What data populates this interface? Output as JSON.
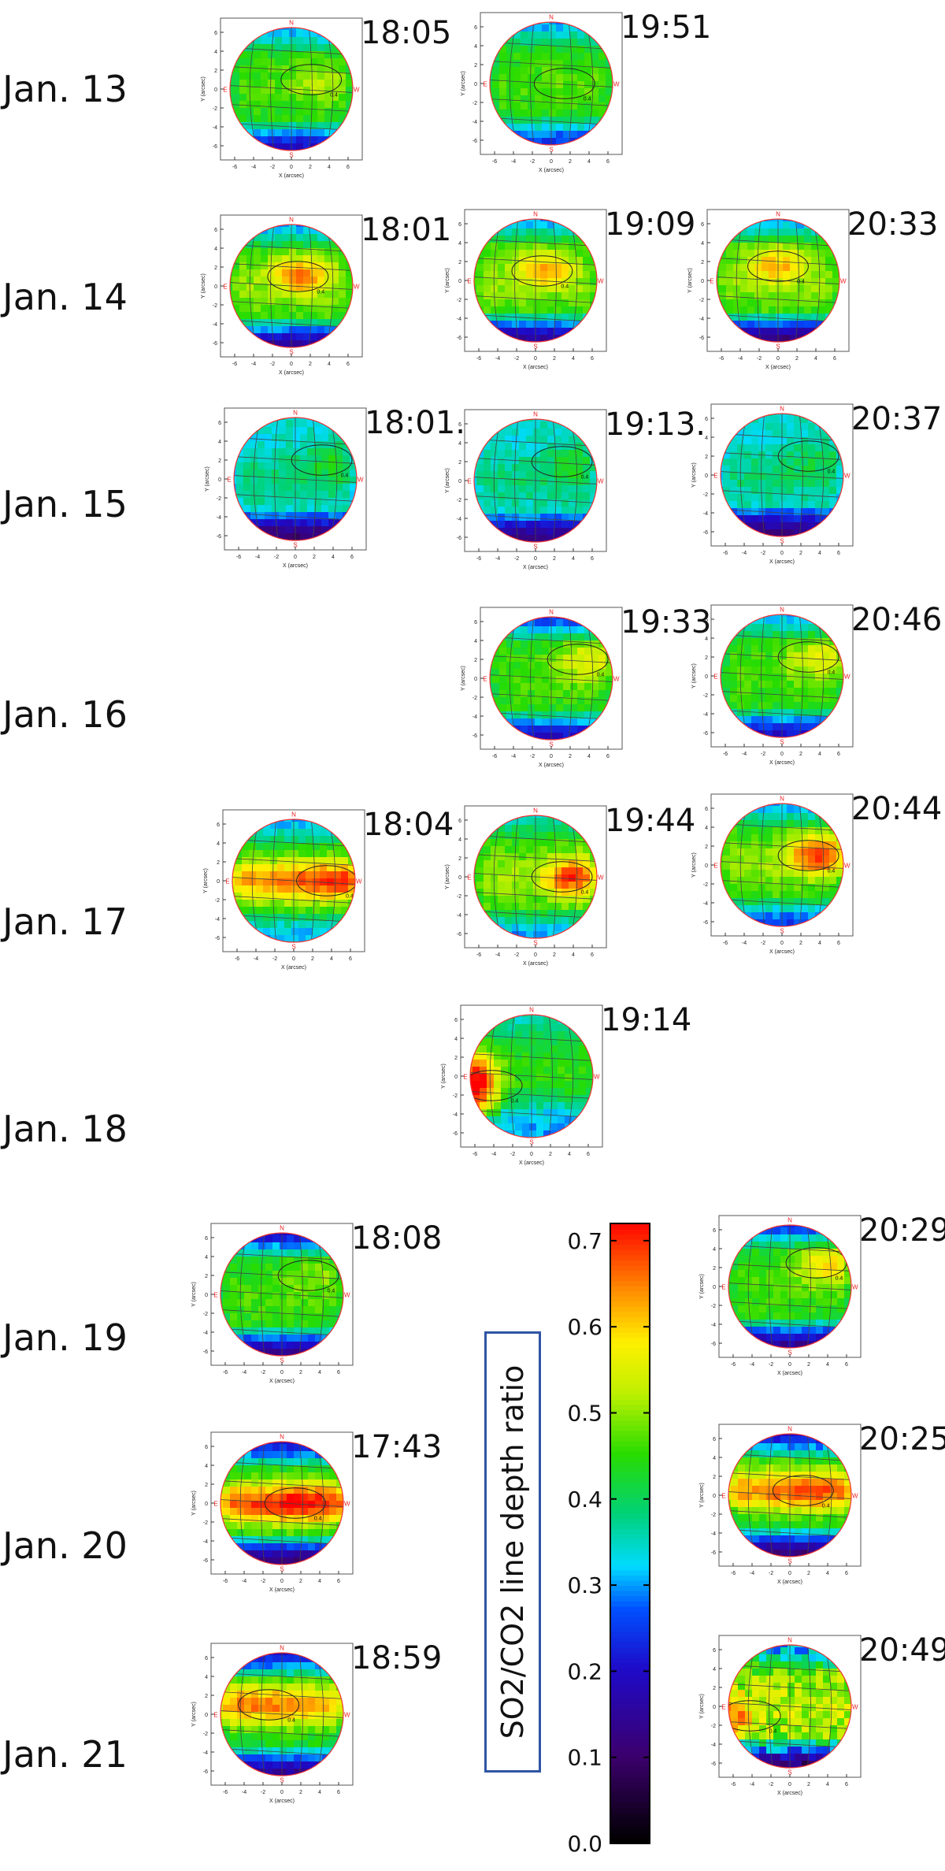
{
  "chart_data": {
    "type": "heatmap",
    "xlabel": "X (arcsec)",
    "ylabel": "Y (arcsec)",
    "x_ticks": [
      -6,
      -4,
      -2,
      0,
      2,
      4,
      6
    ],
    "y_ticks": [
      6,
      4,
      2,
      0,
      -2,
      -4,
      -6
    ],
    "disk_labels": {
      "north": "N",
      "south": "S",
      "east": "E",
      "west": "W"
    },
    "contour_labels": [
      "0.4",
      "0.5"
    ],
    "colorbar": {
      "label": "SO2/CO2 line depth ratio",
      "range": [
        0.0,
        0.72
      ],
      "ticks": [
        "0.7",
        "0.6",
        "0.5",
        "0.4",
        "0.3",
        "0.2",
        "0.1",
        "0.0"
      ]
    },
    "days": [
      {
        "date": "Jan. 13",
        "maps": [
          {
            "time": "18:05",
            "peak": 0.5,
            "peak_x": 3,
            "peak_y": 1,
            "south": 0.2,
            "north": 0.3,
            "style": "mid"
          },
          {
            "time": "19:51",
            "peak": 0.45,
            "peak_x": 2,
            "peak_y": 0,
            "south": 0.25,
            "north": 0.3,
            "style": "mid"
          }
        ]
      },
      {
        "date": "Jan. 14",
        "maps": [
          {
            "time": "18:01",
            "peak": 0.65,
            "peak_x": 1,
            "peak_y": 1,
            "south": 0.15,
            "north": 0.3,
            "style": "blob"
          },
          {
            "time": "19:09",
            "peak": 0.62,
            "peak_x": 1,
            "peak_y": 1,
            "south": 0.15,
            "north": 0.3,
            "style": "blob"
          },
          {
            "time": "20:33",
            "peak": 0.62,
            "peak_x": 0,
            "peak_y": 1.5,
            "south": 0.12,
            "north": 0.3,
            "style": "blob"
          }
        ]
      },
      {
        "date": "Jan. 15",
        "maps": [
          {
            "time": "18:01.",
            "peak": 0.42,
            "peak_x": 4,
            "peak_y": 2,
            "south": 0.1,
            "north": 0.35,
            "style": "low"
          },
          {
            "time": "19:13.",
            "peak": 0.42,
            "peak_x": 4,
            "peak_y": 2,
            "south": 0.12,
            "north": 0.35,
            "style": "low"
          },
          {
            "time": "20:37",
            "peak": 0.4,
            "peak_x": 4,
            "peak_y": 2,
            "south": 0.12,
            "north": 0.35,
            "style": "low"
          }
        ]
      },
      {
        "date": "Jan. 16",
        "maps": [
          {
            "time": "19:33",
            "peak": 0.55,
            "peak_x": 4,
            "peak_y": 2,
            "south": 0.2,
            "north": 0.25,
            "style": "mid"
          },
          {
            "time": "20:46",
            "peak": 0.55,
            "peak_x": 4,
            "peak_y": 2,
            "south": 0.2,
            "north": 0.3,
            "style": "mid"
          }
        ]
      },
      {
        "date": "Jan. 17",
        "maps": [
          {
            "time": "18:04",
            "peak": 0.7,
            "peak_x": 5,
            "peak_y": 0,
            "south": 0.3,
            "north": 0.3,
            "style": "band"
          },
          {
            "time": "19:44",
            "peak": 0.7,
            "peak_x": 4,
            "peak_y": 0,
            "south": 0.3,
            "north": 0.35,
            "style": "blob"
          },
          {
            "time": "20:44",
            "peak": 0.7,
            "peak_x": 4,
            "peak_y": 1,
            "south": 0.25,
            "north": 0.3,
            "style": "blob"
          }
        ]
      },
      {
        "date": "Jan. 18",
        "maps": [
          {
            "time": "19:14",
            "peak": 0.72,
            "peak_x": -6,
            "peak_y": -1,
            "south": 0.3,
            "north": 0.35,
            "style": "limb"
          }
        ]
      },
      {
        "date": "Jan. 19",
        "maps": [
          {
            "time": "18:08",
            "peak": 0.48,
            "peak_x": 4,
            "peak_y": 2,
            "south": 0.15,
            "north": 0.2,
            "style": "mid"
          },
          {
            "time": "20:29",
            "peak": 0.58,
            "peak_x": 4,
            "peak_y": 2.5,
            "south": 0.15,
            "north": 0.25,
            "style": "mid"
          }
        ]
      },
      {
        "date": "Jan. 20",
        "maps": [
          {
            "time": "17:43",
            "peak": 0.72,
            "peak_x": 2,
            "peak_y": 0,
            "south": 0.12,
            "north": 0.2,
            "style": "band"
          },
          {
            "time": "20:25",
            "peak": 0.68,
            "peak_x": 2,
            "peak_y": 0.5,
            "south": 0.12,
            "north": 0.2,
            "style": "band"
          }
        ]
      },
      {
        "date": "Jan. 21",
        "maps": [
          {
            "time": "18:59",
            "peak": 0.65,
            "peak_x": -2,
            "peak_y": 1,
            "south": 0.15,
            "north": 0.2,
            "style": "band"
          },
          {
            "time": "20:49",
            "peak": 0.65,
            "peak_x": -6,
            "peak_y": -1,
            "south": 0.12,
            "north": 0.3,
            "style": "noisy"
          }
        ]
      }
    ]
  }
}
